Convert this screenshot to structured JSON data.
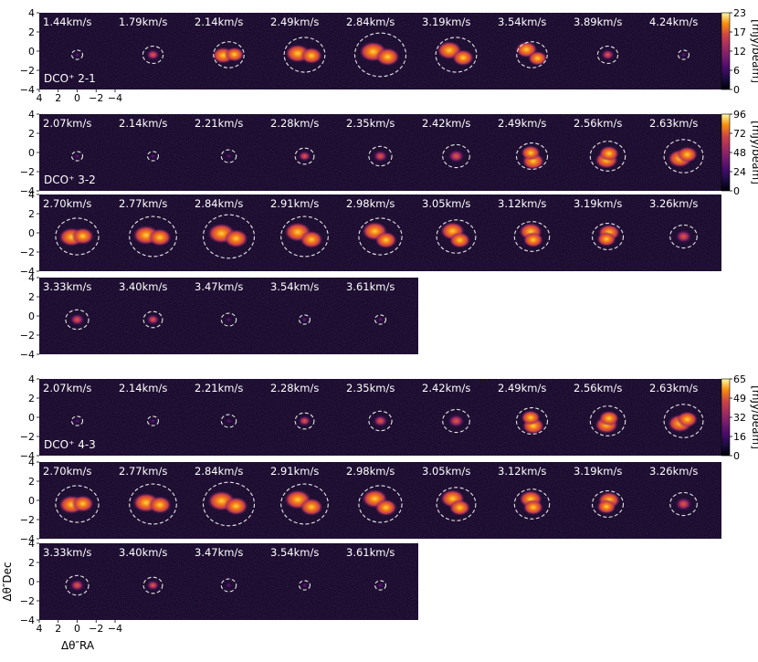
{
  "chart_data": {
    "type": "heatmap",
    "axes": {
      "xlabel": "Δθ″RA",
      "ylabel": "Δθ″Dec",
      "xticks": [
        "4",
        "2",
        "0",
        "−2",
        "−4"
      ],
      "yticks": [
        "4",
        "2",
        "0",
        "−2",
        "−4"
      ],
      "xlim": [
        4,
        -4
      ],
      "ylim": [
        -4,
        4
      ]
    },
    "panels": [
      {
        "line": "DCO⁺ 2-1",
        "colorbar": {
          "label": "[mJy/beam]",
          "min": 0,
          "max": 23,
          "ticks": [
            "23",
            "17",
            "12",
            "6",
            "0"
          ]
        },
        "rows": [
          [
            "1.44km/s",
            "1.79km/s",
            "2.14km/s",
            "2.49km/s",
            "2.84km/s",
            "3.19km/s",
            "3.54km/s",
            "3.89km/s",
            "4.24km/s"
          ]
        ]
      },
      {
        "line": "DCO⁺ 3-2",
        "colorbar": {
          "label": "[mJy/beam]",
          "min": 0,
          "max": 96,
          "ticks": [
            "96",
            "72",
            "48",
            "24",
            "0"
          ]
        },
        "rows": [
          [
            "2.07km/s",
            "2.14km/s",
            "2.21km/s",
            "2.28km/s",
            "2.35km/s",
            "2.42km/s",
            "2.49km/s",
            "2.56km/s",
            "2.63km/s"
          ],
          [
            "2.70km/s",
            "2.77km/s",
            "2.84km/s",
            "2.91km/s",
            "2.98km/s",
            "3.05km/s",
            "3.12km/s",
            "3.19km/s",
            "3.26km/s"
          ],
          [
            "3.33km/s",
            "3.40km/s",
            "3.47km/s",
            "3.54km/s",
            "3.61km/s"
          ]
        ]
      },
      {
        "line": "DCO⁺ 4-3",
        "colorbar": {
          "label": "[mJy/beam]",
          "min": 0,
          "max": 65,
          "ticks": [
            "65",
            "49",
            "32",
            "16",
            "0"
          ]
        },
        "rows": [
          [
            "2.07km/s",
            "2.14km/s",
            "2.21km/s",
            "2.28km/s",
            "2.35km/s",
            "2.42km/s",
            "2.49km/s",
            "2.56km/s",
            "2.63km/s"
          ],
          [
            "2.70km/s",
            "2.77km/s",
            "2.84km/s",
            "2.91km/s",
            "2.98km/s",
            "3.05km/s",
            "3.12km/s",
            "3.19km/s",
            "3.26km/s"
          ],
          [
            "3.33km/s",
            "3.40km/s",
            "3.47km/s",
            "3.54km/s",
            "3.61km/s"
          ]
        ]
      }
    ]
  }
}
